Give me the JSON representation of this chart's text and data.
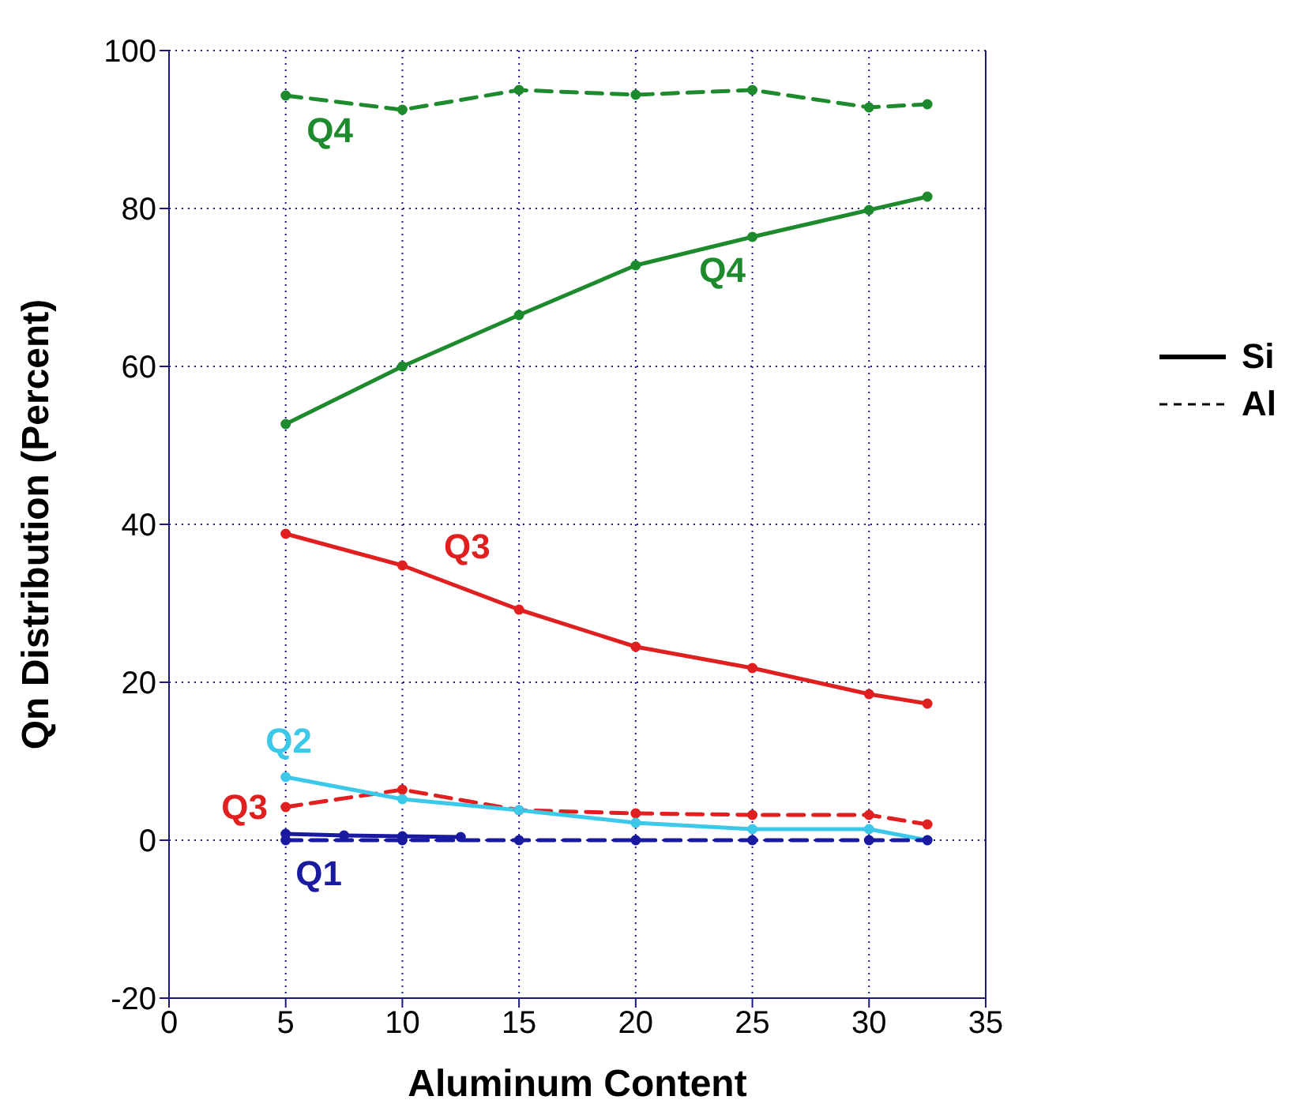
{
  "chart_data": {
    "type": "line",
    "xlabel": "Aluminum Content",
    "ylabel": "Qn Distribution (Percent)",
    "xlim": [
      0,
      35
    ],
    "xticks": [
      0,
      5,
      10,
      15,
      20,
      25,
      30,
      35
    ],
    "ylim": [
      -20,
      100
    ],
    "yticks": [
      -20,
      0,
      20,
      40,
      60,
      80,
      100
    ],
    "grid": true,
    "marker": "circle",
    "series": [
      {
        "name": "Q4",
        "color": "#1e8a2e",
        "line_style": "solid",
        "x": [
          5,
          10,
          15,
          20,
          25,
          30,
          32.5
        ],
        "values": [
          52.7,
          60.0,
          66.5,
          72.8,
          76.4,
          79.8,
          81.5
        ]
      },
      {
        "name": "Q4",
        "color": "#1e8a2e",
        "line_style": "dashed",
        "x": [
          5,
          10,
          15,
          20,
          25,
          30,
          32.5
        ],
        "values": [
          94.3,
          92.5,
          95.0,
          94.4,
          95.0,
          92.8,
          93.2
        ]
      },
      {
        "name": "Q3",
        "color": "#e02020",
        "line_style": "solid",
        "x": [
          5,
          10,
          15,
          20,
          25,
          30,
          32.5
        ],
        "values": [
          38.8,
          34.8,
          29.2,
          24.5,
          21.8,
          18.5,
          17.3
        ]
      },
      {
        "name": "Q3",
        "color": "#e02020",
        "line_style": "dashed",
        "x": [
          5,
          10,
          15,
          20,
          25,
          30,
          32.5
        ],
        "values": [
          4.2,
          6.4,
          3.8,
          3.4,
          3.2,
          3.2,
          2.0
        ]
      },
      {
        "name": "Q2",
        "color": "#3cc8e8",
        "line_style": "solid",
        "x": [
          5,
          10,
          15,
          20,
          25,
          30,
          32.5
        ],
        "values": [
          8.0,
          5.2,
          3.8,
          2.2,
          1.4,
          1.4,
          0
        ]
      },
      {
        "name": "Q1",
        "color": "#1a1aa0",
        "line_style": "dashed",
        "x": [
          5,
          10,
          15,
          20,
          25,
          30,
          32.5
        ],
        "values": [
          0,
          0,
          0,
          0,
          0,
          0,
          0
        ]
      },
      {
        "color": "#1a1aa0",
        "line_style": "solid",
        "x": [
          5,
          7.5,
          10,
          12.5
        ],
        "values": [
          0.8,
          0.6,
          0.5,
          0.4
        ]
      }
    ],
    "annotations": [
      "Si",
      "Al"
    ]
  }
}
